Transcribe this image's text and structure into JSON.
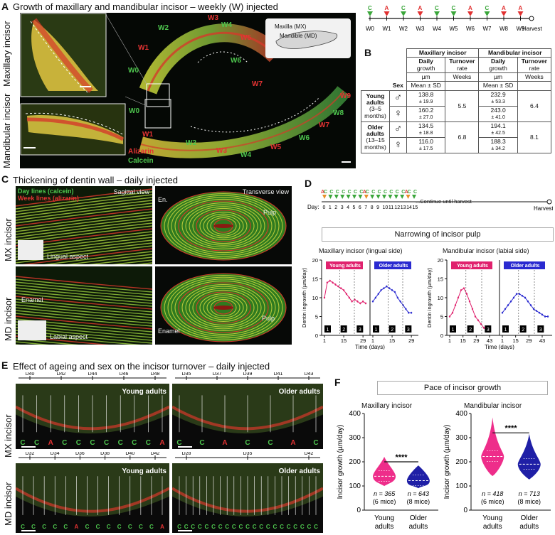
{
  "panel_a": {
    "letter": "A",
    "title": "Growth of maxillary and mandibular incisor – weekly (W) injected",
    "side_mx": "Maxillary incisor",
    "side_md": "Mandibular incisor",
    "inset_mx": "Maxilla (MX)",
    "inset_md": "Mandible (MD)",
    "stain_red": "Alizarin",
    "stain_green": "Calcein",
    "week_labels_upper": [
      "W1",
      "W2",
      "W3",
      "W4",
      "W5",
      "W6",
      "W7",
      "W0"
    ],
    "week_labels_lower": [
      "W0",
      "W1",
      "W2",
      "W3",
      "W4",
      "W5",
      "W6",
      "W7",
      "W8",
      "W9"
    ],
    "timeline": {
      "markers": [
        "C",
        "A",
        "C",
        "A",
        "C",
        "C",
        "A",
        "C",
        "A"
      ],
      "weeks": [
        "W0",
        "W1",
        "W2",
        "W3",
        "W4",
        "W5",
        "W6",
        "W7",
        "W8",
        "W9"
      ],
      "end": "Harvest"
    }
  },
  "panel_b": {
    "letter": "B",
    "hdr_mx": "Maxillary incisor",
    "hdr_md": "Mandibular incisor",
    "daily": "Daily",
    "growth": "growth",
    "turnover": "Turnover",
    "rate": "rate",
    "um": "µm",
    "weeks": "Weeks",
    "mean_sd": "Mean ± SD",
    "sex": "Sex",
    "male": "♂",
    "female": "♀",
    "young": [
      "Young",
      "adults",
      "(3–5",
      "months)"
    ],
    "older": [
      "Older",
      "adults",
      "(13–15",
      "months)"
    ],
    "rows": [
      {
        "mx": "138.8",
        "mx_sd": "± 19.9",
        "md": "232.9",
        "md_sd": "± 53.3"
      },
      {
        "mx": "160.2",
        "mx_sd": "± 27.0",
        "md": "243.0",
        "md_sd": "± 41.0"
      },
      {
        "mx": "134.5",
        "mx_sd": "± 18.8",
        "md": "194.1",
        "md_sd": "± 42.5"
      },
      {
        "mx": "116.0",
        "mx_sd": "± 17.5",
        "md": "188.3",
        "md_sd": "± 34.2"
      }
    ],
    "turnover_young_mx": "5.5",
    "turnover_young_md": "6.4",
    "turnover_older_mx": "6.8",
    "turnover_older_md": "8.1"
  },
  "panel_c": {
    "letter": "C",
    "title": "Thickening of dentin wall – daily injected",
    "day_lines": "Day lines (calcein)",
    "week_lines": "Week lines (alizarin)",
    "sagittal": "Sagittal view",
    "transverse": "Transverse view",
    "lingual": "Lingual aspect",
    "labial": "Labial aspect",
    "en": "En.",
    "pulp": "Pulp",
    "enamel": "Enamel",
    "side_mx": "MX incisor",
    "side_md": "MD incisor"
  },
  "panel_d": {
    "letter": "D",
    "day_prefix": "Day:",
    "days": [
      "0",
      "1",
      "2",
      "3",
      "4",
      "5",
      "6",
      "7",
      "8",
      "9",
      "10",
      "11",
      "12",
      "13",
      "14",
      "15"
    ],
    "continue": "...Continue until harvest",
    "harvest": "Harvest",
    "box_title": "Narrowing of incisor pulp",
    "young_chip": "Young adults",
    "older_chip": "Older adults",
    "phase_labels": [
      "1",
      "2",
      "3"
    ],
    "colors": {
      "young": "#e0226e",
      "older": "#2a2ad0"
    }
  },
  "chart_data": [
    {
      "type": "line",
      "title": "Maxillary incisor (lingual side)",
      "xlabel": "Time (days)",
      "ylabel": "Dentin ingrowth (µm/day)",
      "ylim": [
        0,
        20
      ],
      "yticks": [
        "0",
        "5",
        "10",
        "15",
        "20"
      ],
      "xticks": [
        "1",
        "15",
        "29",
        "1",
        "15",
        "29"
      ],
      "series": [
        {
          "name": "Young adults",
          "x": [
            1,
            3,
            5,
            7,
            9,
            11,
            13,
            15,
            17,
            19,
            21,
            23,
            25,
            27,
            29,
            31
          ],
          "values": [
            10,
            14,
            14.5,
            14,
            13.5,
            13,
            12.5,
            12,
            11,
            10,
            9,
            9.5,
            9,
            8.5,
            9,
            8.5
          ]
        },
        {
          "name": "Older adults",
          "x": [
            1,
            3,
            5,
            7,
            9,
            11,
            13,
            15,
            17,
            19,
            21,
            23,
            25,
            27,
            29
          ],
          "values": [
            9,
            10,
            11,
            12,
            12.5,
            13,
            12.5,
            12,
            11.5,
            10,
            9,
            8,
            7,
            6,
            6
          ]
        }
      ]
    },
    {
      "type": "line",
      "title": "Mandibular incisor (labial side)",
      "xlabel": "Time (days)",
      "ylabel": "Dentin ingrowth (µm/day)",
      "ylim": [
        0,
        20
      ],
      "yticks": [
        "0",
        "5",
        "10",
        "15",
        "20"
      ],
      "xticks": [
        "1",
        "15",
        "29",
        "43",
        "1",
        "15",
        "29",
        "43"
      ],
      "series": [
        {
          "name": "Young adults",
          "x": [
            1,
            4,
            7,
            10,
            13,
            16,
            19,
            22,
            25,
            28,
            31,
            34,
            37,
            40,
            43
          ],
          "values": [
            5,
            6,
            8,
            10,
            12,
            12.5,
            11,
            9,
            7,
            5,
            4,
            3,
            2,
            1.5,
            1
          ]
        },
        {
          "name": "Older adults",
          "x": [
            1,
            4,
            7,
            10,
            13,
            16,
            19,
            22,
            25,
            28,
            31,
            34,
            37,
            40,
            43,
            46,
            49
          ],
          "values": [
            6,
            7,
            8,
            9,
            10,
            11,
            11,
            10.5,
            10,
            9,
            8,
            7,
            6.5,
            6,
            5.5,
            5,
            5
          ]
        }
      ]
    },
    {
      "type": "scatter",
      "title": "Maxillary incisor",
      "ylabel": "Incisor growth (µm/day)",
      "ylim": [
        0,
        400
      ],
      "yticks": [
        "0",
        "100",
        "200",
        "300",
        "400"
      ],
      "categories": [
        "Young adults",
        "Older adults"
      ],
      "medians": [
        140,
        122
      ],
      "n_labels": [
        "n = 365",
        "n = 643"
      ],
      "mice": [
        "(6 mice)",
        "(8 mice)"
      ],
      "significance": "****"
    },
    {
      "type": "scatter",
      "title": "Mandibular incisor",
      "ylabel": "Incisor growth (µm/day)",
      "ylim": [
        0,
        400
      ],
      "yticks": [
        "0",
        "100",
        "200",
        "300",
        "400"
      ],
      "categories": [
        "Young adults",
        "Older adults"
      ],
      "medians": [
        222,
        190
      ],
      "n_labels": [
        "n = 418",
        "n = 713"
      ],
      "mice": [
        "(6 mice)",
        "(8 mice)"
      ],
      "significance": "****"
    }
  ],
  "panel_e": {
    "letter": "E",
    "title": "Effect of ageing and sex on the incisor turnover – daily injected",
    "side_mx": "MX incisor",
    "side_md": "MD incisor",
    "young": "Young adults",
    "older": "Older adults",
    "top_left_days": [
      "D40",
      "D42",
      "D44",
      "D46",
      "D48"
    ],
    "top_right_days": [
      "D35",
      "D37",
      "D39",
      "D41",
      "D43"
    ],
    "bottom_left_days": [
      "D32",
      "D34",
      "D36",
      "D38",
      "D40",
      "D42"
    ],
    "bottom_right_days": [
      "D28",
      "D35",
      "D42"
    ],
    "marks_tl": [
      "C",
      "C",
      "A",
      "C",
      "C",
      "C",
      "C",
      "C",
      "C",
      "C",
      "A"
    ],
    "marks_tr": [
      "C",
      "C",
      "A",
      "C",
      "C",
      "A",
      "C"
    ],
    "marks_bl": [
      "C",
      "C",
      "C",
      "C",
      "C",
      "A",
      "C",
      "C",
      "C",
      "C",
      "C",
      "C",
      "C",
      "A"
    ],
    "marks_br": "CCCCCCCCCCCCCCCCCCCCC"
  },
  "panel_f": {
    "letter": "F",
    "box_title": "Pace of incisor growth"
  }
}
